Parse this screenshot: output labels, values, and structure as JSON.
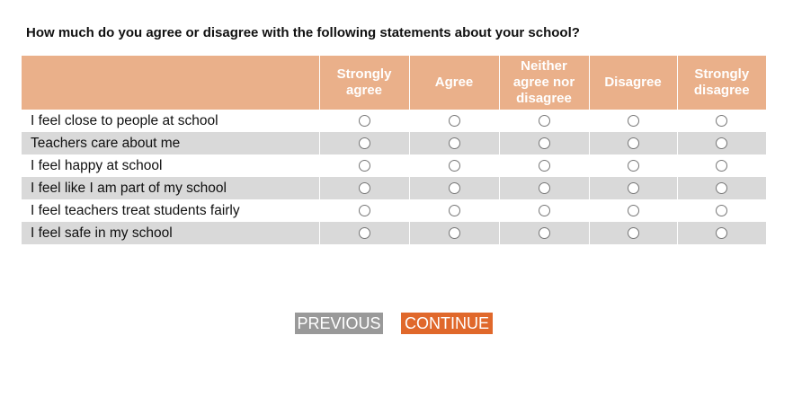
{
  "question": "How much do you agree or disagree with the following statements about your school?",
  "columns": [
    "Strongly agree",
    "Agree",
    "Neither agree nor disagree",
    "Disagree",
    "Strongly disagree"
  ],
  "rows": [
    "I feel close to people at school",
    "Teachers care about me",
    "I feel happy at school",
    "I feel like I am part of my school",
    "I feel teachers treat students fairly",
    "I feel safe in my school"
  ],
  "buttons": {
    "previous": "PREVIOUS",
    "continue": "CONTINUE"
  },
  "colors": {
    "header": "#eab08a",
    "alt_row": "#d9d9d9",
    "previous": "#999999",
    "continue": "#e0682b"
  }
}
